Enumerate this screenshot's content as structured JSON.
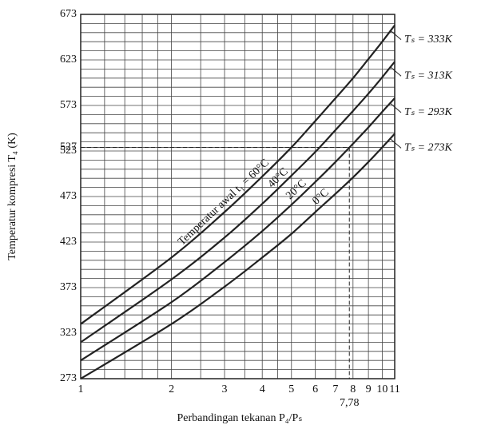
{
  "chart_data": {
    "type": "line",
    "ylabel": "Temperatur kompresi T₄ (K)",
    "xlabel": "Perbandingan tekanan P₄/Pₛ",
    "x": [
      1,
      2,
      3,
      4,
      5,
      6,
      7,
      8,
      9,
      10,
      11
    ],
    "series": [
      {
        "name": "Tₛ = 333K",
        "label": "Temperatur awal t₁ = 60°C",
        "color": "#222222",
        "values": [
          333,
          406,
          456,
          495,
          527,
          556,
          581,
          603,
          624,
          643,
          661
        ]
      },
      {
        "name": "Tₛ = 313K",
        "label": "40°C",
        "color": "#222222",
        "values": [
          313,
          382,
          428,
          465,
          496,
          522,
          546,
          567,
          586,
          604,
          621
        ]
      },
      {
        "name": "Tₛ = 293K",
        "label": "20°C",
        "color": "#222222",
        "values": [
          293,
          357,
          401,
          435,
          464,
          489,
          511,
          531,
          549,
          566,
          581
        ]
      },
      {
        "name": "Tₛ = 273K",
        "label": "0°C",
        "color": "#222222",
        "values": [
          273,
          333,
          374,
          406,
          432,
          456,
          476,
          494,
          511,
          527,
          542
        ]
      }
    ],
    "xlim": [
      1,
      11
    ],
    "ylim": [
      273,
      673
    ],
    "xscale": "log",
    "xticks": [
      1,
      2,
      3,
      4,
      5,
      6,
      7,
      8,
      9,
      10,
      11
    ],
    "yticks": [
      273,
      323,
      373,
      423,
      473,
      523,
      527,
      573,
      623,
      673
    ],
    "xminorticks": [
      1.2,
      1.4,
      1.6,
      1.8,
      2.5,
      3.5,
      4.5
    ],
    "yminorticks": [
      283,
      293,
      303,
      313,
      333,
      343,
      353,
      363,
      383,
      393,
      403,
      413,
      433,
      443,
      453,
      463,
      483,
      493,
      503,
      513,
      533,
      543,
      553,
      563,
      583,
      593,
      603,
      613,
      633,
      643,
      653,
      663
    ],
    "reference": {
      "x": {
        "value": 7.78,
        "label": "7,78"
      },
      "y": 527
    },
    "grid": true
  }
}
